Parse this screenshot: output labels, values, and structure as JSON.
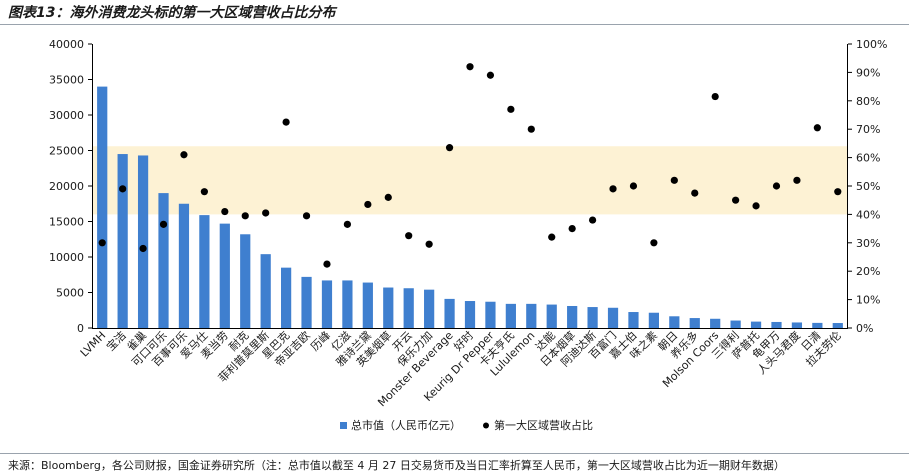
{
  "header": {
    "title": "图表13：海外消费龙头标的第一大区域营收占比分布"
  },
  "footer": {
    "source": "来源：Bloomberg，各公司财报，国金证券研究所（注：总市值以截至 4 月 27 日交易货币及当日汇率折算至人民币，第一大区域营收占比为近一期财年数据）"
  },
  "chart_data": {
    "type": "bar",
    "title": "海外消费龙头标的第一大区域营收占比分布",
    "categories": [
      "LVMH",
      "宝洁",
      "雀巢",
      "可口可乐",
      "百事可乐",
      "爱马仕",
      "麦当劳",
      "耐克",
      "菲利普莫里斯",
      "星巴克",
      "帝亚吉欧",
      "历峰",
      "亿滋",
      "雅诗兰黛",
      "英美烟草",
      "开云",
      "保乐力加",
      "Monster Beverage",
      "好时",
      "Keurig Dr Pepper",
      "卡夫亨氏",
      "Lululemon",
      "达能",
      "日本烟草",
      "阿迪达斯",
      "百富门",
      "嘉士伯",
      "味之素",
      "朝日",
      "养乐多",
      "Molson Coors",
      "三得利",
      "萨普托",
      "龟甲万",
      "人头马君度",
      "日清",
      "拉夫劳伦"
    ],
    "series": [
      {
        "name": "总市值（人民币亿元）",
        "type": "bar",
        "axis": "left",
        "color": "#3f7fcf",
        "values": [
          34000,
          24500,
          24300,
          19000,
          17500,
          15900,
          14700,
          13200,
          10400,
          8500,
          7200,
          6700,
          6700,
          6400,
          5700,
          5600,
          5400,
          4100,
          3800,
          3700,
          3400,
          3400,
          3300,
          3100,
          2950,
          2850,
          2250,
          2150,
          1650,
          1400,
          1300,
          1050,
          900,
          850,
          780,
          720,
          700
        ]
      },
      {
        "name": "第一大区域营收占比",
        "type": "scatter",
        "axis": "right",
        "color": "#000000",
        "values": [
          0.3,
          0.49,
          0.28,
          0.365,
          0.61,
          0.48,
          0.41,
          0.395,
          0.405,
          0.725,
          0.395,
          0.225,
          0.365,
          0.435,
          0.46,
          0.325,
          0.295,
          0.635,
          0.92,
          0.89,
          0.77,
          0.7,
          0.32,
          0.35,
          0.38,
          0.49,
          0.5,
          0.3,
          0.52,
          0.475,
          0.815,
          0.45,
          0.43,
          0.5,
          0.52,
          0.705,
          0.48
        ]
      }
    ],
    "y_left": {
      "min": 0,
      "max": 40000,
      "ticks": [
        "0",
        "5000",
        "10000",
        "15000",
        "20000",
        "25000",
        "30000",
        "35000",
        "40000"
      ]
    },
    "y_right": {
      "min": 0,
      "max": 1,
      "ticks": [
        "0%",
        "10%",
        "20%",
        "30%",
        "40%",
        "50%",
        "60%",
        "70%",
        "80%",
        "90%",
        "100%"
      ]
    },
    "highlight_band": {
      "from": 0.4,
      "to": 0.64,
      "axis": "right",
      "color": "#fdf2d4"
    },
    "legend": {
      "placement": "bottom"
    },
    "grid": false
  }
}
